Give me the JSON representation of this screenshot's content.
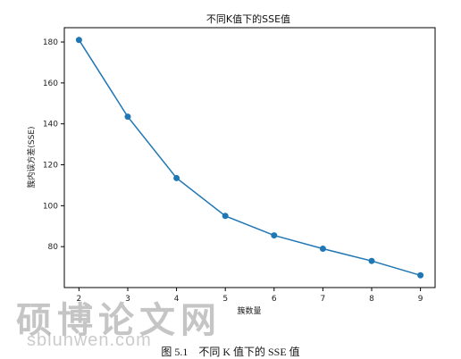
{
  "chart_data": {
    "type": "line",
    "title": "不同K值下的SSE值",
    "xlabel": "簇数量",
    "ylabel": "簇内误方差(SSE)",
    "x": [
      2,
      3,
      4,
      5,
      6,
      7,
      8,
      9
    ],
    "series": [
      {
        "values": [
          181,
          143.5,
          113.5,
          95,
          85.5,
          79,
          73,
          66
        ]
      }
    ],
    "xlim": [
      1.7,
      9.3
    ],
    "ylim": [
      60,
      187
    ],
    "xticks": [
      "2",
      "3",
      "4",
      "5",
      "6",
      "7",
      "8",
      "9"
    ],
    "yticks": [
      80,
      100,
      120,
      140,
      160,
      180
    ],
    "grid": false,
    "line_color": "#1f77b4"
  },
  "watermark": {
    "site_name": "硕博论文网",
    "url": "sblunwen.com"
  },
  "caption": "图 5.1　不同 K 值下的 SSE 值"
}
